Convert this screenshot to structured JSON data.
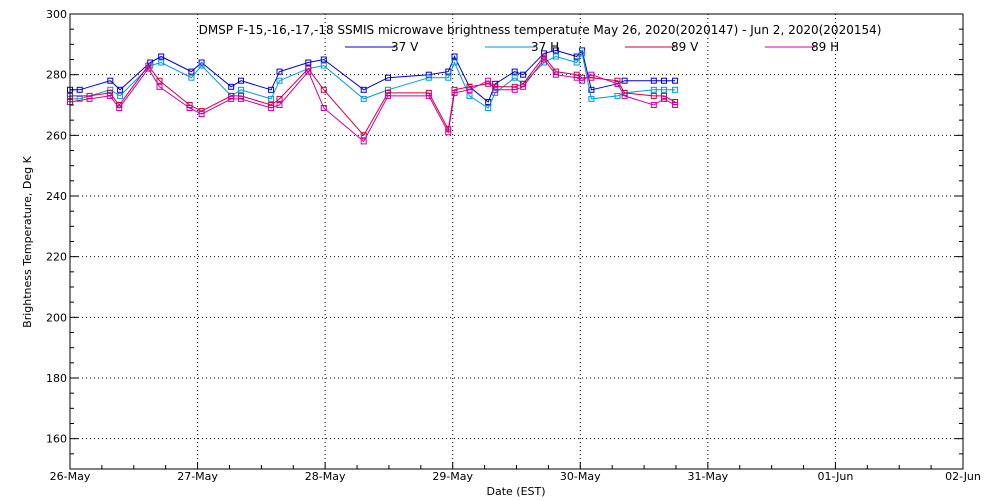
{
  "chart_data": {
    "type": "line",
    "title": "DMSP F-15,-16,-17,-18 SSMIS microwave brightness temperature May 26, 2020(2020147) - Jun  2, 2020(2020154)",
    "xlabel": "Date (EST)",
    "ylabel": "Brightness Temperature, Deg K",
    "xlim": [
      "2020-05-26T00:00",
      "2020-06-02T00:00"
    ],
    "ylim": [
      150,
      300
    ],
    "x_ticks": [
      "26-May",
      "27-May",
      "28-May",
      "29-May",
      "30-May",
      "31-May",
      "01-Jun",
      "02-Jun"
    ],
    "y_ticks": [
      160,
      180,
      200,
      220,
      240,
      260,
      280,
      300
    ],
    "grid": true,
    "legend_position": "top-center",
    "series": [
      {
        "name": "37 V",
        "color": "#0000cc",
        "x": [
          "2020-05-26T00:00",
          "2020-05-26T01:50",
          "2020-05-26T07:35",
          "2020-05-26T09:25",
          "2020-05-26T15:05",
          "2020-05-26T17:10",
          "2020-05-26T22:50",
          "2020-05-27T00:45",
          "2020-05-27T06:20",
          "2020-05-27T08:10",
          "2020-05-27T13:50",
          "2020-05-27T15:25",
          "2020-05-27T20:50",
          "2020-05-27T23:45",
          "2020-05-28T07:15",
          "2020-05-28T11:50",
          "2020-05-28T19:30",
          "2020-05-28T23:10",
          "2020-05-29T00:20",
          "2020-05-29T03:10",
          "2020-05-29T06:40",
          "2020-05-29T08:00",
          "2020-05-29T11:40",
          "2020-05-29T13:15",
          "2020-05-29T17:10",
          "2020-05-29T19:25",
          "2020-05-29T23:20",
          "2020-05-30T00:20",
          "2020-05-30T02:05",
          "2020-05-30T07:00",
          "2020-05-30T08:20",
          "2020-05-30T13:50",
          "2020-05-30T15:45",
          "2020-05-30T17:50"
        ],
        "values": [
          275,
          275,
          278,
          275,
          284,
          286,
          281,
          284,
          276,
          278,
          275,
          281,
          284,
          285,
          275,
          279,
          280,
          281,
          286,
          276,
          271,
          277,
          281,
          280,
          287,
          288,
          286,
          288,
          275,
          277,
          278,
          278,
          278,
          278
        ]
      },
      {
        "name": "37 H",
        "color": "#0099dd",
        "x": [
          "2020-05-26T00:00",
          "2020-05-26T01:50",
          "2020-05-26T07:35",
          "2020-05-26T09:25",
          "2020-05-26T15:05",
          "2020-05-26T17:10",
          "2020-05-26T22:50",
          "2020-05-27T00:45",
          "2020-05-27T06:20",
          "2020-05-27T08:10",
          "2020-05-27T13:50",
          "2020-05-27T15:25",
          "2020-05-27T20:50",
          "2020-05-27T23:45",
          "2020-05-28T07:15",
          "2020-05-28T11:50",
          "2020-05-28T19:30",
          "2020-05-28T23:10",
          "2020-05-29T00:20",
          "2020-05-29T03:10",
          "2020-05-29T06:40",
          "2020-05-29T08:00",
          "2020-05-29T11:40",
          "2020-05-29T13:15",
          "2020-05-29T17:10",
          "2020-05-29T19:25",
          "2020-05-29T23:20",
          "2020-05-30T00:20",
          "2020-05-30T02:05",
          "2020-05-30T07:00",
          "2020-05-30T08:20",
          "2020-05-30T13:50",
          "2020-05-30T15:45",
          "2020-05-30T17:50"
        ],
        "values": [
          272,
          272,
          275,
          273,
          283,
          284,
          279,
          283,
          273,
          275,
          272,
          278,
          282,
          283,
          272,
          275,
          279,
          279,
          284,
          273,
          269,
          274,
          279,
          277,
          284,
          286,
          284,
          287,
          272,
          273,
          274,
          275,
          275,
          275
        ]
      },
      {
        "name": "89 V",
        "color": "#cc0044",
        "x": [
          "2020-05-26T00:00",
          "2020-05-26T03:40",
          "2020-05-26T07:30",
          "2020-05-26T09:15",
          "2020-05-26T14:45",
          "2020-05-26T16:50",
          "2020-05-26T22:30",
          "2020-05-27T00:45",
          "2020-05-27T06:20",
          "2020-05-27T08:10",
          "2020-05-27T13:50",
          "2020-05-27T15:25",
          "2020-05-27T20:50",
          "2020-05-27T23:45",
          "2020-05-28T07:15",
          "2020-05-28T11:50",
          "2020-05-28T19:30",
          "2020-05-28T23:10",
          "2020-05-29T00:20",
          "2020-05-29T03:10",
          "2020-05-29T06:40",
          "2020-05-29T08:00",
          "2020-05-29T11:40",
          "2020-05-29T13:15",
          "2020-05-29T17:10",
          "2020-05-29T19:25",
          "2020-05-29T23:20",
          "2020-05-30T00:20",
          "2020-05-30T02:05",
          "2020-05-30T07:00",
          "2020-05-30T08:20",
          "2020-05-30T13:50",
          "2020-05-30T15:45",
          "2020-05-30T17:50"
        ],
        "values": [
          273,
          273,
          274,
          270,
          283,
          278,
          270,
          268,
          273,
          273,
          270,
          272,
          282,
          275,
          260,
          274,
          274,
          262,
          275,
          276,
          277,
          276,
          276,
          277,
          286,
          281,
          280,
          279,
          279,
          278,
          274,
          273,
          273,
          271
        ]
      },
      {
        "name": "89 H",
        "color": "#cc00aa",
        "x": [
          "2020-05-26T00:00",
          "2020-05-26T03:40",
          "2020-05-26T07:30",
          "2020-05-26T09:15",
          "2020-05-26T14:45",
          "2020-05-26T16:50",
          "2020-05-26T22:30",
          "2020-05-27T00:45",
          "2020-05-27T06:20",
          "2020-05-27T08:10",
          "2020-05-27T13:50",
          "2020-05-27T15:25",
          "2020-05-27T20:50",
          "2020-05-27T23:45",
          "2020-05-28T07:15",
          "2020-05-28T11:50",
          "2020-05-28T19:30",
          "2020-05-28T23:10",
          "2020-05-29T00:20",
          "2020-05-29T03:10",
          "2020-05-29T06:40",
          "2020-05-29T08:00",
          "2020-05-29T11:40",
          "2020-05-29T13:15",
          "2020-05-29T17:10",
          "2020-05-29T19:25",
          "2020-05-29T23:20",
          "2020-05-30T00:20",
          "2020-05-30T02:05",
          "2020-05-30T07:00",
          "2020-05-30T08:20",
          "2020-05-30T13:50",
          "2020-05-30T15:45",
          "2020-05-30T17:50"
        ],
        "values": [
          271,
          272,
          273,
          269,
          282,
          276,
          269,
          267,
          272,
          272,
          269,
          270,
          281,
          269,
          258,
          273,
          273,
          261,
          274,
          275,
          278,
          275,
          275,
          276,
          285,
          280,
          279,
          278,
          280,
          277,
          273,
          270,
          272,
          270
        ]
      }
    ]
  }
}
